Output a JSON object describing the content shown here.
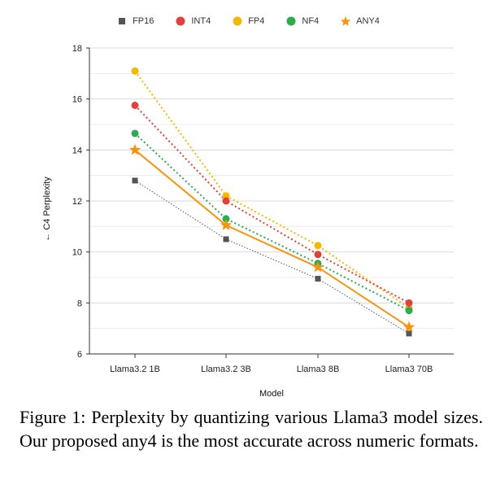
{
  "chart_data": {
    "type": "line",
    "categories": [
      "Llama3.2 1B",
      "Llama3.2 3B",
      "Llama3 8B",
      "Llama3 70B"
    ],
    "series": [
      {
        "name": "FP16",
        "values": [
          12.8,
          10.5,
          8.95,
          6.8
        ],
        "color": "#555555",
        "marker": "square",
        "line": "dotted-thin"
      },
      {
        "name": "INT4",
        "values": [
          15.75,
          12.0,
          9.9,
          8.0
        ],
        "color": "#e0413a",
        "marker": "circle",
        "line": "dotted"
      },
      {
        "name": "FP4",
        "values": [
          17.1,
          12.2,
          10.25,
          7.8
        ],
        "color": "#f5b800",
        "marker": "circle",
        "line": "dotted"
      },
      {
        "name": "NF4",
        "values": [
          14.65,
          11.3,
          9.55,
          7.7
        ],
        "color": "#2eaa4f",
        "marker": "circle",
        "line": "dotted"
      },
      {
        "name": "ANY4",
        "values": [
          14.0,
          11.05,
          9.4,
          7.05
        ],
        "color": "#f7940f",
        "marker": "star",
        "line": "solid"
      }
    ],
    "ylim": [
      6,
      18
    ],
    "yticks": [
      6,
      8,
      10,
      12,
      14,
      16,
      18
    ],
    "xlabel": "Model",
    "ylabel": "← C4 Perplexity",
    "grid": true,
    "legend": "top-center"
  },
  "caption": "Figure 1: Perplexity by quantizing various Llama3 model sizes. Our proposed any4 is the most accurate across numeric formats."
}
